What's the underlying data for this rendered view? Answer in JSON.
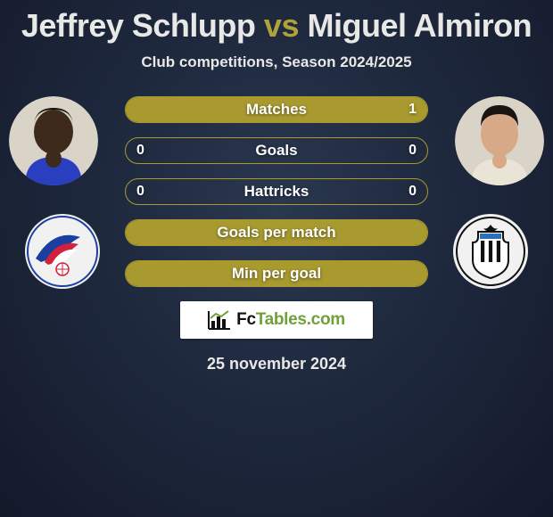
{
  "title": {
    "player1": "Jeffrey Schlupp",
    "vs": "vs",
    "player2": "Miguel Almiron",
    "player1_color": "#e8e8e6",
    "vs_color": "#b0a23a",
    "player2_color": "#e8e8e6"
  },
  "subtitle": "Club competitions, Season 2024/2025",
  "date": "25 november 2024",
  "colors": {
    "bar_border": "#a89a2f",
    "fill_left": "#a89a2f",
    "fill_right": "#a89a2f",
    "fill_full": "#a89a2f"
  },
  "players": {
    "left": {
      "name": "Jeffrey Schlupp",
      "avatar_bg": "#d9d3c8",
      "skin": "#3d2a1b",
      "shirt": "#2a3fbf",
      "club_name": "Crystal Palace",
      "club_colors": {
        "primary": "#1a3fa0",
        "secondary": "#d2213a",
        "accent": "#ffffff"
      }
    },
    "right": {
      "name": "Miguel Almiron",
      "avatar_bg": "#d9d3c8",
      "skin": "#d7a986",
      "hair": "#1a1512",
      "shirt": "#e9e4d5",
      "club_name": "Newcastle United",
      "club_colors": {
        "primary": "#111111",
        "secondary": "#ffffff",
        "accent": "#2d6fb6"
      }
    }
  },
  "stats": [
    {
      "label": "Matches",
      "left_val": "",
      "right_val": "1",
      "left_pct": 0,
      "right_pct": 100
    },
    {
      "label": "Goals",
      "left_val": "0",
      "right_val": "0",
      "left_pct": 0,
      "right_pct": 0
    },
    {
      "label": "Hattricks",
      "left_val": "0",
      "right_val": "0",
      "left_pct": 0,
      "right_pct": 0
    },
    {
      "label": "Goals per match",
      "left_val": "",
      "right_val": "",
      "left_pct": 100,
      "right_pct": 0,
      "single_fill": true
    },
    {
      "label": "Min per goal",
      "left_val": "",
      "right_val": "",
      "left_pct": 100,
      "right_pct": 0,
      "single_fill": true
    }
  ],
  "branding": {
    "prefix": "Fc",
    "suffix": "Tables.com"
  }
}
